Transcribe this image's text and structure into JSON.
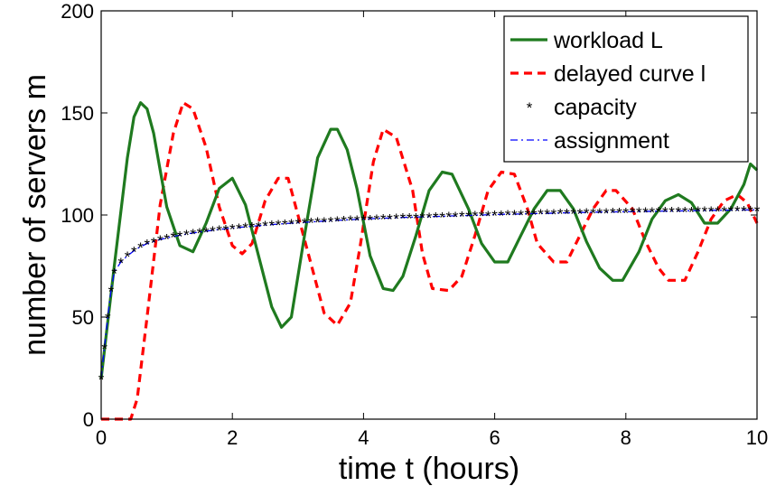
{
  "chart_data": {
    "type": "line",
    "xlabel": "time t (hours)",
    "ylabel": "number of servers m",
    "xlim": [
      0,
      10
    ],
    "ylim": [
      0,
      200
    ],
    "xticks": [
      0,
      2,
      4,
      6,
      8,
      10
    ],
    "yticks": [
      0,
      50,
      100,
      150,
      200
    ],
    "grid": false,
    "legend_position": "top-right",
    "series": [
      {
        "name": "workload L",
        "color": "#1f7a1f",
        "style": "solid",
        "x": [
          0,
          0.2,
          0.4,
          0.5,
          0.6,
          0.7,
          0.8,
          0.9,
          1.0,
          1.2,
          1.4,
          1.6,
          1.8,
          2.0,
          2.2,
          2.4,
          2.6,
          2.75,
          2.9,
          3.1,
          3.3,
          3.5,
          3.6,
          3.75,
          3.9,
          4.1,
          4.3,
          4.45,
          4.6,
          4.8,
          5.0,
          5.2,
          5.35,
          5.6,
          5.8,
          6.0,
          6.2,
          6.4,
          6.6,
          6.8,
          7.0,
          7.2,
          7.4,
          7.6,
          7.8,
          7.95,
          8.2,
          8.4,
          8.6,
          8.8,
          9.0,
          9.2,
          9.4,
          9.6,
          9.8,
          9.9,
          10.0
        ],
        "y": [
          20,
          75,
          128,
          148,
          155,
          152,
          140,
          122,
          104,
          85,
          82,
          96,
          113,
          118,
          105,
          80,
          55,
          45,
          50,
          90,
          128,
          142,
          142,
          132,
          113,
          80,
          64,
          63,
          70,
          90,
          112,
          121,
          120,
          103,
          86,
          77,
          77,
          90,
          103,
          112,
          112,
          103,
          87,
          74,
          68,
          68,
          82,
          98,
          107,
          110,
          106,
          96,
          96,
          103,
          115,
          125,
          122
        ]
      },
      {
        "name": "delayed curve l",
        "color": "#ff0000",
        "style": "dashed",
        "x": [
          0,
          0.2,
          0.45,
          0.55,
          0.7,
          0.9,
          1.1,
          1.25,
          1.4,
          1.6,
          1.8,
          2.0,
          2.15,
          2.3,
          2.5,
          2.7,
          2.85,
          3.0,
          3.2,
          3.4,
          3.6,
          3.8,
          3.95,
          4.15,
          4.3,
          4.5,
          4.75,
          4.9,
          5.05,
          5.3,
          5.5,
          5.7,
          5.9,
          6.1,
          6.3,
          6.5,
          6.65,
          6.9,
          7.1,
          7.3,
          7.5,
          7.7,
          7.85,
          8.1,
          8.3,
          8.5,
          8.65,
          8.9,
          9.1,
          9.3,
          9.5,
          9.7,
          9.85,
          10.0
        ],
        "y": [
          0,
          0,
          0,
          10,
          50,
          105,
          140,
          155,
          152,
          133,
          104,
          85,
          81,
          86,
          107,
          118,
          118,
          100,
          76,
          52,
          46,
          57,
          85,
          126,
          142,
          138,
          112,
          81,
          64,
          63,
          70,
          90,
          112,
          121,
          120,
          103,
          86,
          77,
          77,
          90,
          103,
          112,
          112,
          103,
          87,
          74,
          68,
          68,
          82,
          98,
          107,
          110,
          106,
          96
        ]
      },
      {
        "name": "capacity",
        "color": "#0000ff",
        "marker": "*",
        "x": [
          0,
          0.05,
          0.1,
          0.15,
          0.2,
          0.3,
          0.4,
          0.5,
          0.6,
          0.7,
          0.8,
          0.9,
          1.0,
          1.1,
          1.2,
          1.3,
          1.4,
          1.5,
          1.6,
          1.7,
          1.8,
          1.9,
          2.0,
          2.1,
          2.2,
          2.3,
          2.4,
          2.5,
          2.6,
          2.7,
          2.8,
          2.9,
          3.0,
          3.1,
          3.2,
          3.3,
          3.4,
          3.5,
          3.6,
          3.7,
          3.8,
          3.9,
          4.0,
          4.1,
          4.2,
          4.3,
          4.4,
          4.5,
          4.6,
          4.7,
          4.8,
          4.9,
          5.0,
          5.1,
          5.2,
          5.3,
          5.4,
          5.5,
          5.6,
          5.7,
          5.8,
          5.9,
          6.0,
          6.1,
          6.2,
          6.3,
          6.4,
          6.5,
          6.6,
          6.7,
          6.8,
          6.9,
          7.0,
          7.1,
          7.2,
          7.3,
          7.4,
          7.5,
          7.6,
          7.7,
          7.8,
          7.9,
          8.0,
          8.1,
          8.2,
          8.3,
          8.4,
          8.5,
          8.6,
          8.7,
          8.8,
          8.9,
          9.0,
          9.1,
          9.2,
          9.3,
          9.4,
          9.5,
          9.6,
          9.7,
          9.8,
          9.9,
          10.0
        ],
        "y": [
          20,
          35,
          50,
          63,
          72,
          77,
          80,
          82.5,
          84.5,
          86,
          87,
          88,
          88.8,
          89.5,
          90.1,
          90.7,
          91.2,
          91.7,
          92.1,
          92.5,
          92.9,
          93.2,
          93.6,
          93.9,
          94.2,
          94.5,
          94.8,
          95.1,
          95.3,
          95.6,
          95.8,
          96.0,
          96.2,
          96.4,
          96.6,
          96.8,
          97.0,
          97.2,
          97.4,
          97.5,
          97.7,
          97.8,
          98.0,
          98.1,
          98.3,
          98.4,
          98.5,
          98.7,
          98.8,
          98.9,
          99.0,
          99.1,
          99.2,
          99.3,
          99.4,
          99.5,
          99.6,
          99.7,
          99.8,
          99.9,
          100.0,
          100.1,
          100.2,
          100.3,
          100.4,
          100.5,
          100.5,
          100.6,
          100.7,
          100.8,
          100.8,
          100.9,
          101.0,
          101.1,
          101.1,
          101.2,
          101.3,
          101.3,
          101.4,
          101.4,
          101.5,
          101.6,
          101.6,
          101.7,
          101.7,
          101.8,
          101.8,
          101.9,
          101.9,
          102.0,
          102.0,
          102.1,
          102.1,
          102.2,
          102.2,
          102.3,
          102.3,
          102.3,
          102.4,
          102.4,
          102.5,
          102.5,
          102.5
        ]
      },
      {
        "name": "assignment",
        "color": "#0000ff",
        "style": "dashdot",
        "x": [
          0,
          0.05,
          0.1,
          0.15,
          0.2,
          0.3,
          0.4,
          0.5,
          0.6,
          0.7,
          0.8,
          0.9,
          1.0,
          1.2,
          1.4,
          1.6,
          1.8,
          2.0,
          2.2,
          2.4,
          2.6,
          2.8,
          3.0,
          3.2,
          3.4,
          3.6,
          3.8,
          4.0,
          4.2,
          4.4,
          4.6,
          4.8,
          5.0,
          5.2,
          5.4,
          5.6,
          5.8,
          6.0,
          6.2,
          6.4,
          6.6,
          6.8,
          7.0,
          7.2,
          7.4,
          7.6,
          7.8,
          8.0,
          8.2,
          8.4,
          8.6,
          8.8,
          9.0,
          9.2,
          9.4,
          9.6,
          9.8,
          10.0
        ],
        "y": [
          20,
          35,
          50,
          63,
          72,
          77,
          80,
          82.5,
          84.5,
          86,
          87,
          88,
          88.8,
          90.1,
          91.2,
          92.1,
          92.9,
          93.6,
          94.2,
          94.8,
          95.3,
          95.8,
          96.2,
          96.6,
          97.0,
          97.4,
          97.7,
          98.0,
          98.3,
          98.5,
          98.8,
          99.0,
          99.2,
          99.4,
          99.6,
          99.8,
          100.0,
          100.2,
          100.4,
          100.5,
          100.7,
          100.8,
          101.0,
          101.1,
          101.3,
          101.4,
          101.5,
          101.6,
          101.7,
          101.8,
          101.9,
          102.0,
          102.1,
          102.2,
          102.3,
          102.4,
          102.5,
          102.5
        ]
      }
    ]
  }
}
